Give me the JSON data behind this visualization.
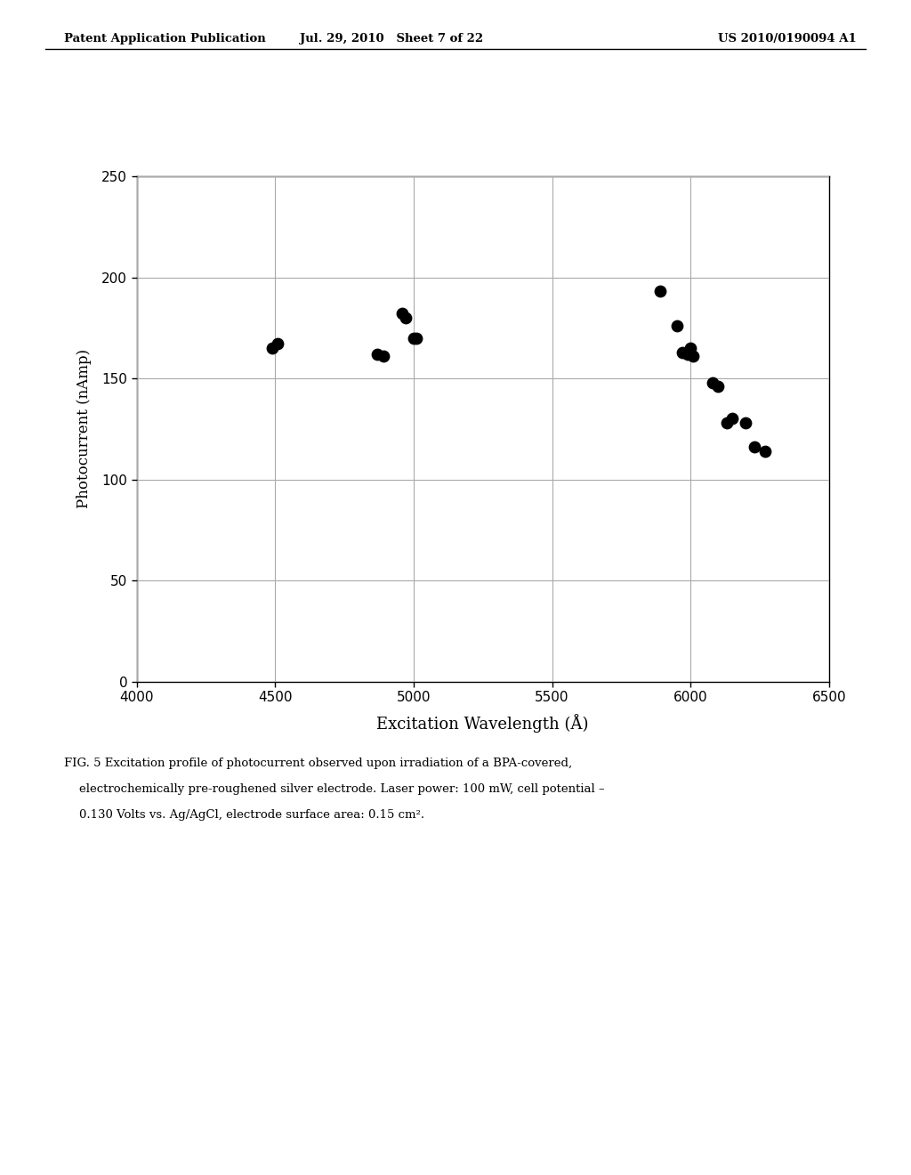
{
  "scatter_x": [
    4490,
    4510,
    4870,
    4890,
    4960,
    4970,
    5000,
    5010,
    5890,
    5950,
    5970,
    5990,
    6000,
    6010,
    6080,
    6100,
    6130,
    6150,
    6200,
    6230,
    6270
  ],
  "scatter_y": [
    165,
    167,
    162,
    161,
    182,
    180,
    170,
    170,
    193,
    176,
    163,
    162,
    165,
    161,
    148,
    146,
    128,
    130,
    128,
    116,
    114
  ],
  "xlim": [
    4000,
    6500
  ],
  "ylim": [
    0,
    250
  ],
  "xticks": [
    4000,
    4500,
    5000,
    5500,
    6000,
    6500
  ],
  "yticks": [
    0,
    50,
    100,
    150,
    200,
    250
  ],
  "xlabel": "Excitation Wavelength (Å)",
  "ylabel": "Photocurrent (nAmp)",
  "marker_size": 80,
  "marker_color": "#000000",
  "header_left": "Patent Application Publication",
  "header_center": "Jul. 29, 2010   Sheet 7 of 22",
  "header_right": "US 2010/0190094 A1",
  "caption_line1": "FIG. 5 Excitation profile of photocurrent observed upon irradiation of a BPA-covered,",
  "caption_line2": "    electrochemically pre-roughened silver electrode. Laser power: 100 mW, cell potential –",
  "caption_line3": "    0.130 Volts vs. Ag/AgCl, electrode surface area: 0.15 cm².",
  "bg_color": "#ffffff",
  "grid_color": "#aaaaaa",
  "spine_color": "#000000"
}
